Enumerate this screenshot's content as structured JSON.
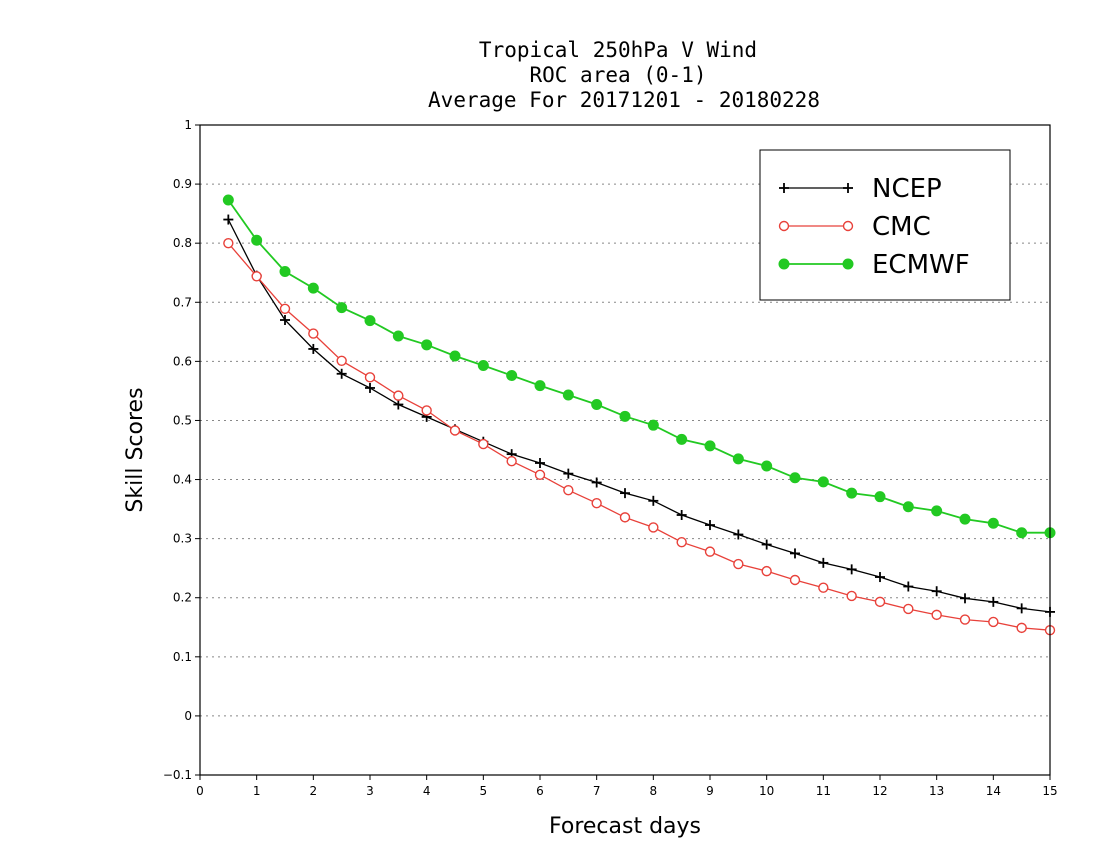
{
  "chart_data": {
    "type": "line",
    "title_lines": [
      "Tropical 250hPa V Wind",
      "ROC area (0-1)",
      "Average For 20171201 - 20180228"
    ],
    "xlabel": "Forecast days",
    "ylabel": "Skill Scores",
    "xlim": [
      0,
      15
    ],
    "ylim": [
      -0.1,
      1
    ],
    "x_ticks": [
      "0",
      "1",
      "2",
      "3",
      "4",
      "5",
      "6",
      "7",
      "8",
      "9",
      "10",
      "11",
      "12",
      "13",
      "14",
      "15"
    ],
    "y_ticks": [
      "1",
      "0.9",
      "0.8",
      "0.7",
      "0.6",
      "0.5",
      "0.4",
      "0.3",
      "0.2",
      "0.1",
      "0",
      "−0.1"
    ],
    "y_tick_values": [
      1,
      0.9,
      0.8,
      0.7,
      0.6,
      0.5,
      0.4,
      0.3,
      0.2,
      0.1,
      0,
      -0.1
    ],
    "grid": true,
    "legend_position": "top-right",
    "x": [
      0.5,
      1,
      1.5,
      2,
      2.5,
      3,
      3.5,
      4,
      4.5,
      5,
      5.5,
      6,
      6.5,
      7,
      7.5,
      8,
      8.5,
      9,
      9.5,
      10,
      10.5,
      11,
      11.5,
      12,
      12.5,
      13,
      13.5,
      14,
      14.5,
      15
    ],
    "series": [
      {
        "name": "NCEP",
        "color": "#000000",
        "marker": "plus",
        "values": [
          0.84,
          0.745,
          0.67,
          0.621,
          0.579,
          0.555,
          0.527,
          0.506,
          0.485,
          0.464,
          0.443,
          0.428,
          0.41,
          0.395,
          0.377,
          0.364,
          0.34,
          0.323,
          0.307,
          0.29,
          0.275,
          0.259,
          0.248,
          0.235,
          0.219,
          0.211,
          0.199,
          0.193,
          0.182,
          0.176
        ]
      },
      {
        "name": "CMC",
        "color": "#e8413a",
        "marker": "circle-open",
        "values": [
          0.8,
          0.744,
          0.689,
          0.647,
          0.601,
          0.573,
          0.542,
          0.517,
          0.483,
          0.46,
          0.431,
          0.408,
          0.382,
          0.36,
          0.336,
          0.319,
          0.294,
          0.278,
          0.257,
          0.245,
          0.23,
          0.217,
          0.203,
          0.193,
          0.181,
          0.171,
          0.163,
          0.159,
          0.149,
          0.145
        ]
      },
      {
        "name": "ECMWF",
        "color": "#22c922",
        "marker": "circle-filled",
        "values": [
          0.873,
          0.805,
          0.752,
          0.724,
          0.691,
          0.669,
          0.643,
          0.628,
          0.609,
          0.593,
          0.576,
          0.559,
          0.543,
          0.527,
          0.507,
          0.492,
          0.468,
          0.457,
          0.435,
          0.423,
          0.403,
          0.396,
          0.377,
          0.371,
          0.354,
          0.347,
          0.333,
          0.326,
          0.31,
          0.31
        ]
      }
    ]
  }
}
